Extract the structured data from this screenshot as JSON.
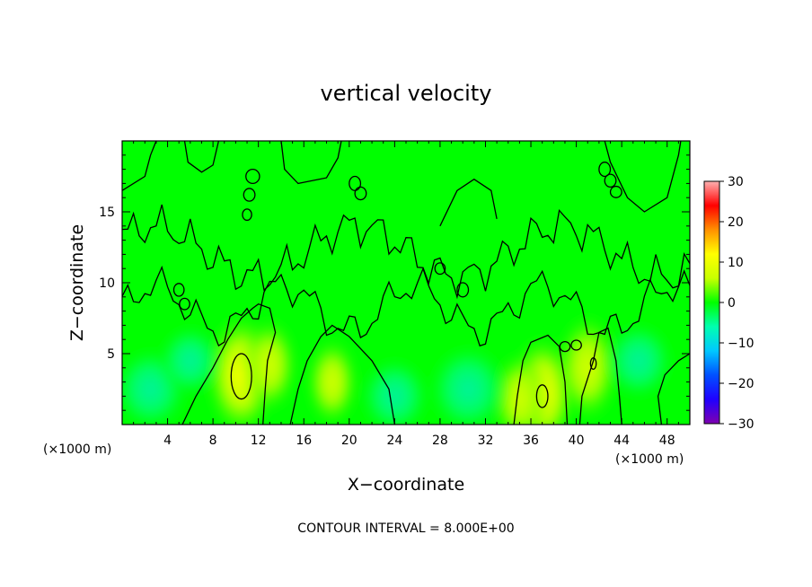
{
  "chart_data": {
    "type": "heatmap",
    "title": "vertical velocity",
    "xlabel": "X−coordinate",
    "ylabel": "Z−coordinate",
    "x_unit_left": "(×1000 m)",
    "x_unit_right": "(×1000 m)",
    "footer": "CONTOUR INTERVAL = 8.000E+00",
    "xlim": [
      0,
      50
    ],
    "ylim": [
      0,
      20
    ],
    "x_ticks": [
      4,
      8,
      12,
      16,
      20,
      24,
      28,
      32,
      36,
      40,
      44,
      48
    ],
    "y_ticks": [
      5,
      10,
      15
    ],
    "colorbar": {
      "min": -30,
      "max": 30,
      "ticks": [
        30,
        20,
        10,
        0,
        -10,
        -20,
        -30
      ],
      "tick_labels": [
        "30",
        "20",
        "10",
        "0",
        "−10",
        "−20",
        "−30"
      ],
      "colormap": [
        "#7f00b0",
        "#2000ff",
        "#0050ff",
        "#00c8ff",
        "#00ffb0",
        "#00ff00",
        "#c8ff00",
        "#ffff00",
        "#ff9000",
        "#ff0000",
        "#ffb0b0"
      ]
    },
    "contour_interval": 8.0,
    "updraft_cores": [
      {
        "x": 10.5,
        "z": 3.5,
        "w": 9
      },
      {
        "x": 13.0,
        "z": 4.2,
        "w": 5
      },
      {
        "x": 18.5,
        "z": 3.0,
        "w": 4
      },
      {
        "x": 37.0,
        "z": 2.2,
        "w": 8
      },
      {
        "x": 41.0,
        "z": 4.0,
        "w": 7
      },
      {
        "x": 35.0,
        "z": 1.8,
        "w": 5
      }
    ],
    "downdraft_regions": [
      {
        "x": 2.5,
        "z": 2.5,
        "w": -5
      },
      {
        "x": 6.0,
        "z": 4.5,
        "w": -3
      },
      {
        "x": 30.5,
        "z": 2.5,
        "w": -6
      },
      {
        "x": 24.0,
        "z": 2.0,
        "w": -4
      },
      {
        "x": 45.5,
        "z": 4.5,
        "w": -4
      }
    ]
  }
}
